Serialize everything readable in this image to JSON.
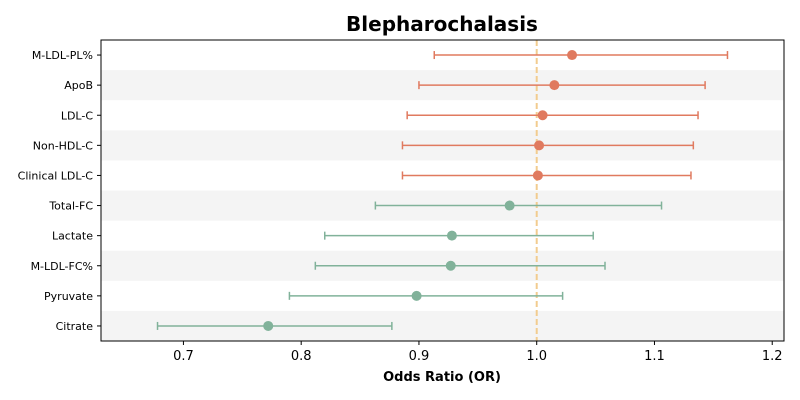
{
  "chart_data": {
    "type": "forest",
    "title": "Blepharochalasis",
    "xlabel": "Odds Ratio (OR)",
    "xlim": [
      0.63,
      1.21
    ],
    "xticks": [
      0.7,
      0.8,
      0.9,
      1.0,
      1.1,
      1.2
    ],
    "xtick_labels": [
      "0.7",
      "0.8",
      "0.9",
      "1.0",
      "1.1",
      "1.2"
    ],
    "reference_line": 1.0,
    "grid": false,
    "band_rows": true,
    "colors": {
      "risk": "#e07a5f",
      "protective": "#81b29a",
      "reference": "#f2cc8f",
      "band": "#f4f4f4"
    },
    "rows": [
      {
        "label": "M-LDL-PL%",
        "or": 1.03,
        "lower": 0.913,
        "upper": 1.162,
        "group": "risk"
      },
      {
        "label": "ApoB",
        "or": 1.015,
        "lower": 0.9,
        "upper": 1.143,
        "group": "risk"
      },
      {
        "label": "LDL-C",
        "or": 1.005,
        "lower": 0.89,
        "upper": 1.137,
        "group": "risk"
      },
      {
        "label": "Non-HDL-C",
        "or": 1.002,
        "lower": 0.886,
        "upper": 1.133,
        "group": "risk"
      },
      {
        "label": "Clinical LDL-C",
        "or": 1.001,
        "lower": 0.886,
        "upper": 1.131,
        "group": "risk"
      },
      {
        "label": "Total-FC",
        "or": 0.977,
        "lower": 0.863,
        "upper": 1.106,
        "group": "protective"
      },
      {
        "label": "Lactate",
        "or": 0.928,
        "lower": 0.82,
        "upper": 1.048,
        "group": "protective"
      },
      {
        "label": "M-LDL-FC%",
        "or": 0.927,
        "lower": 0.812,
        "upper": 1.058,
        "group": "protective"
      },
      {
        "label": "Pyruvate",
        "or": 0.898,
        "lower": 0.79,
        "upper": 1.022,
        "group": "protective"
      },
      {
        "label": "Citrate",
        "or": 0.772,
        "lower": 0.678,
        "upper": 0.877,
        "group": "protective"
      }
    ]
  }
}
